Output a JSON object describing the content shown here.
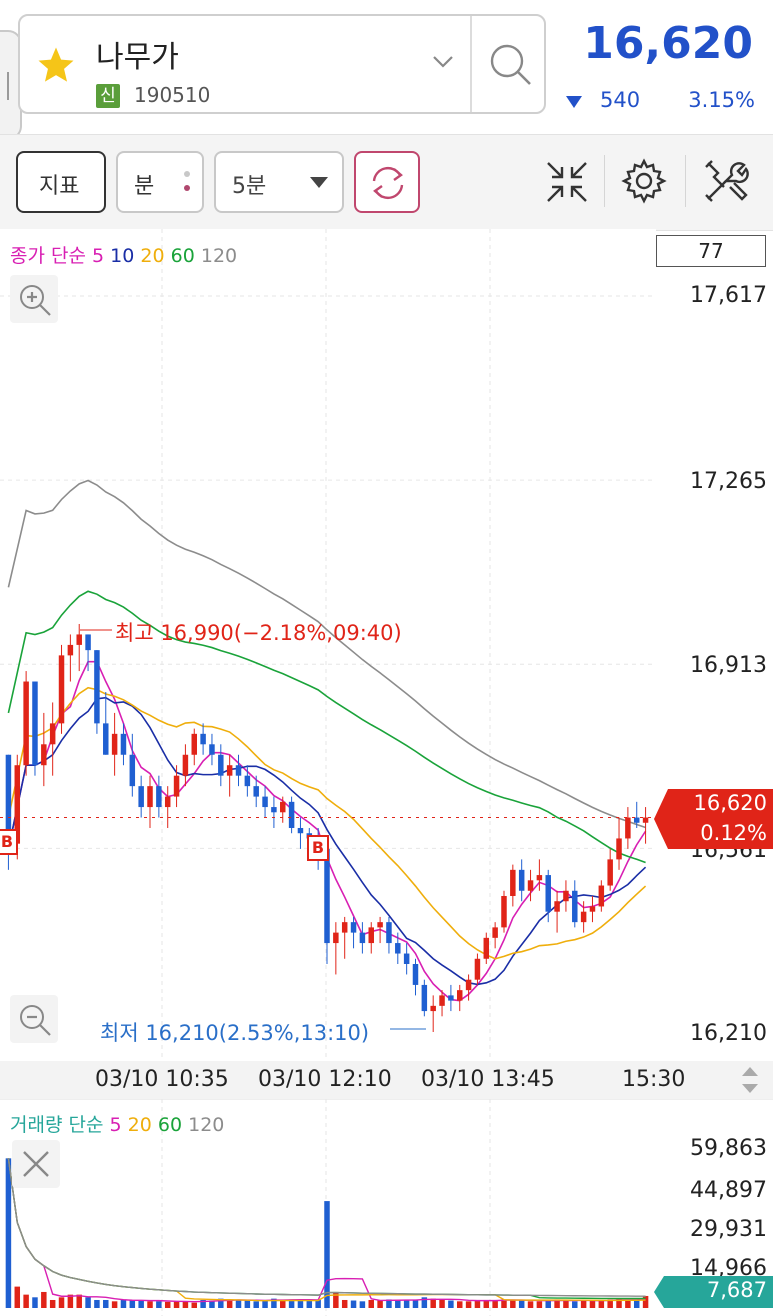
{
  "header": {
    "stock_name": "나무가",
    "badge": "신",
    "stock_code": "190510",
    "price": "16,620",
    "change": "540",
    "change_pct": "3.15%",
    "down_color": "#2251c9"
  },
  "toolbar": {
    "indicator_label": "지표",
    "unit_label": "분",
    "interval_value": "5분"
  },
  "price_chart": {
    "legend_prefix": "종가 단순",
    "ma_labels": [
      "5",
      "10",
      "20",
      "60",
      "120"
    ],
    "ma_colors": [
      "#d81fb3",
      "#1a2ea6",
      "#efae0c",
      "#1aa33a",
      "#8c8c8c"
    ],
    "top_box_value": "77",
    "y_ticks": [
      "17,617",
      "17,265",
      "16,913",
      "16,561",
      "16,210"
    ],
    "high_annotation": "최고 16,990(−2.18%,09:40)",
    "low_annotation": "최저 16,210(2.53%,13:10)",
    "current_price_tag": "16,620",
    "current_pct_tag": "0.12%",
    "buy_marker": "B",
    "x_ticks": [
      "03/10 10:35",
      "03/10 12:10",
      "03/10 13:45",
      "15:30"
    ]
  },
  "volume_chart": {
    "legend_prefix": "거래량 단순",
    "ma_labels": [
      "5",
      "20",
      "60",
      "120"
    ],
    "ma_colors": [
      "#d81fb3",
      "#efae0c",
      "#1aa33a",
      "#8c8c8c"
    ],
    "y_ticks": [
      "59,863",
      "44,897",
      "29,931",
      "14,966",
      "0"
    ],
    "current_volume_tag": "7,687"
  },
  "chart_data": {
    "type": "candlestick",
    "ylim": [
      16210,
      17617
    ],
    "x_ticks": [
      "03/10 10:35",
      "03/10 12:10",
      "03/10 13:45",
      "15:30"
    ],
    "candles": [
      [
        16740,
        16740,
        16520,
        16560
      ],
      [
        16570,
        16740,
        16540,
        16720
      ],
      [
        16720,
        16900,
        16700,
        16880
      ],
      [
        16880,
        16880,
        16700,
        16720
      ],
      [
        16720,
        16820,
        16680,
        16760
      ],
      [
        16760,
        16840,
        16700,
        16800
      ],
      [
        16800,
        16950,
        16780,
        16930
      ],
      [
        16930,
        16970,
        16880,
        16950
      ],
      [
        16950,
        16990,
        16900,
        16970
      ],
      [
        16970,
        16970,
        16900,
        16940
      ],
      [
        16940,
        16940,
        16780,
        16800
      ],
      [
        16800,
        16860,
        16740,
        16740
      ],
      [
        16740,
        16820,
        16700,
        16780
      ],
      [
        16780,
        16800,
        16720,
        16740
      ],
      [
        16740,
        16780,
        16660,
        16680
      ],
      [
        16680,
        16700,
        16620,
        16640
      ],
      [
        16640,
        16700,
        16600,
        16680
      ],
      [
        16680,
        16700,
        16620,
        16640
      ],
      [
        16640,
        16680,
        16600,
        16660
      ],
      [
        16660,
        16720,
        16640,
        16700
      ],
      [
        16700,
        16760,
        16680,
        16740
      ],
      [
        16740,
        16790,
        16720,
        16780
      ],
      [
        16780,
        16800,
        16740,
        16760
      ],
      [
        16760,
        16780,
        16720,
        16740
      ],
      [
        16740,
        16760,
        16680,
        16700
      ],
      [
        16700,
        16740,
        16660,
        16720
      ],
      [
        16720,
        16740,
        16680,
        16700
      ],
      [
        16700,
        16720,
        16660,
        16680
      ],
      [
        16680,
        16700,
        16640,
        16660
      ],
      [
        16660,
        16680,
        16620,
        16640
      ],
      [
        16640,
        16660,
        16600,
        16630
      ],
      [
        16630,
        16660,
        16610,
        16650
      ],
      [
        16650,
        16660,
        16590,
        16600
      ],
      [
        16600,
        16620,
        16560,
        16590
      ],
      [
        16590,
        16600,
        16540,
        16580
      ],
      [
        16580,
        16600,
        16520,
        16560
      ],
      [
        16560,
        16570,
        16340,
        16380
      ],
      [
        16380,
        16420,
        16320,
        16400
      ],
      [
        16400,
        16430,
        16350,
        16420
      ],
      [
        16420,
        16430,
        16370,
        16400
      ],
      [
        16400,
        16420,
        16360,
        16380
      ],
      [
        16380,
        16420,
        16360,
        16410
      ],
      [
        16410,
        16430,
        16380,
        16420
      ],
      [
        16420,
        16430,
        16360,
        16380
      ],
      [
        16380,
        16400,
        16340,
        16360
      ],
      [
        16360,
        16380,
        16320,
        16340
      ],
      [
        16340,
        16350,
        16280,
        16300
      ],
      [
        16300,
        16310,
        16240,
        16250
      ],
      [
        16250,
        16280,
        16210,
        16260
      ],
      [
        16260,
        16290,
        16240,
        16280
      ],
      [
        16280,
        16300,
        16250,
        16270
      ],
      [
        16270,
        16300,
        16250,
        16290
      ],
      [
        16290,
        16320,
        16270,
        16310
      ],
      [
        16310,
        16360,
        16300,
        16350
      ],
      [
        16350,
        16400,
        16340,
        16390
      ],
      [
        16390,
        16420,
        16370,
        16410
      ],
      [
        16410,
        16480,
        16400,
        16470
      ],
      [
        16470,
        16530,
        16450,
        16520
      ],
      [
        16520,
        16540,
        16460,
        16480
      ],
      [
        16480,
        16520,
        16460,
        16500
      ],
      [
        16500,
        16540,
        16480,
        16510
      ],
      [
        16510,
        16520,
        16420,
        16440
      ],
      [
        16440,
        16480,
        16400,
        16460
      ],
      [
        16460,
        16500,
        16440,
        16480
      ],
      [
        16480,
        16500,
        16410,
        16420
      ],
      [
        16420,
        16460,
        16400,
        16440
      ],
      [
        16440,
        16470,
        16420,
        16450
      ],
      [
        16450,
        16500,
        16440,
        16490
      ],
      [
        16490,
        16560,
        16480,
        16540
      ],
      [
        16540,
        16620,
        16520,
        16580
      ],
      [
        16580,
        16640,
        16560,
        16620
      ],
      [
        16620,
        16650,
        16600,
        16610
      ],
      [
        16610,
        16640,
        16570,
        16620
      ]
    ],
    "ma_series": [
      {
        "name": "5",
        "color": "#d81fb3"
      },
      {
        "name": "10",
        "color": "#1a2ea6"
      },
      {
        "name": "20",
        "color": "#efae0c"
      },
      {
        "name": "60",
        "color": "#1aa33a"
      },
      {
        "name": "120",
        "color": "#8c8c8c"
      }
    ],
    "volume": {
      "ylim": [
        0,
        59863
      ],
      "values": [
        56000,
        8000,
        5000,
        4000,
        6000,
        3000,
        4000,
        5000,
        5000,
        4000,
        3000,
        3000,
        2500,
        3000,
        3000,
        2800,
        2500,
        2500,
        2300,
        2500,
        2500,
        2000,
        3000,
        2800,
        3500,
        2800,
        3000,
        2800,
        2500,
        3000,
        3500,
        3000,
        3200,
        2800,
        3000,
        3000,
        40000,
        6000,
        3000,
        2800,
        2500,
        3000,
        2800,
        3200,
        3000,
        2800,
        3000,
        4000,
        3500,
        3000,
        2800,
        2500,
        2500,
        3000,
        3000,
        2800,
        3200,
        3000,
        2800,
        2500,
        2500,
        3000,
        3200,
        2800,
        2500,
        2800,
        2600,
        3000,
        3200,
        3400,
        3000,
        2800,
        4500
      ]
    }
  }
}
